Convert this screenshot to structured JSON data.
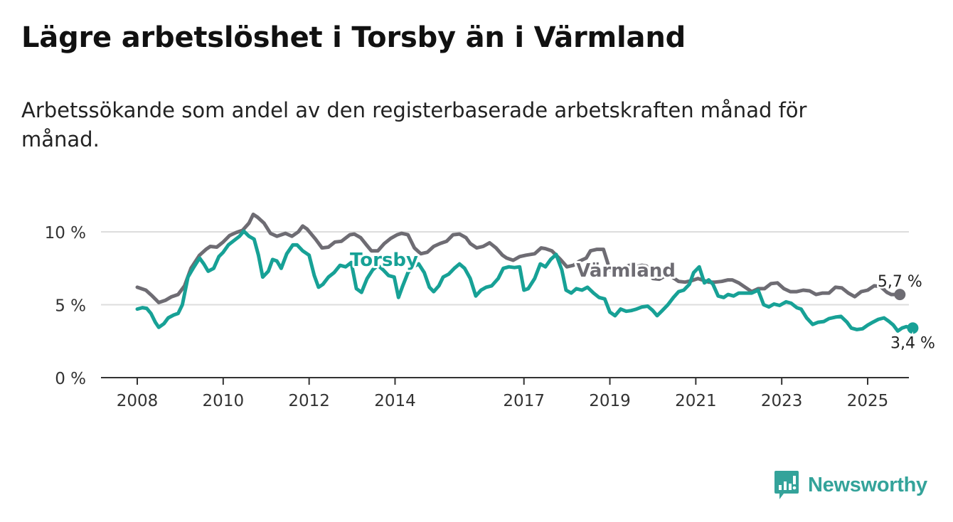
{
  "title": "Lägre arbetslöshet i Torsby än i Värmland",
  "subtitle": "Arbetssökande som andel av den registerbaserade arbetskraften månad för månad.",
  "logo_text": "Newsworthy",
  "colors": {
    "torsby": "#17a196",
    "varmland": "#6e6c73",
    "grid": "#dddddd",
    "axis": "#333333",
    "brand": "#34a39a"
  },
  "chart_data": {
    "type": "line",
    "title": "Lägre arbetslöshet i Torsby än i Värmland",
    "xlabel": "",
    "ylabel": "",
    "xlim": [
      2008,
      2026.8
    ],
    "ylim": [
      0,
      10
    ],
    "y_ticks": [
      0,
      5,
      10
    ],
    "y_tick_labels": [
      "0 %",
      "5 %",
      "10 %"
    ],
    "x_ticks": [
      2008,
      2010,
      2012,
      2014,
      2017,
      2019,
      2021,
      2023,
      2025
    ],
    "x_tick_labels": [
      "2008",
      "2010",
      "2012",
      "2014",
      "2017",
      "2019",
      "2021",
      "2023",
      "2025"
    ],
    "series": [
      {
        "name": "Värmland",
        "label": "Värmland",
        "end_label": "5,7 %",
        "points": [
          [
            2008,
            6.2
          ],
          [
            2008.2,
            6.0
          ],
          [
            2008.35,
            5.6
          ],
          [
            2008.5,
            5.15
          ],
          [
            2008.65,
            5.3
          ],
          [
            2008.8,
            5.55
          ],
          [
            2008.95,
            5.7
          ],
          [
            2009.1,
            6.3
          ],
          [
            2009.25,
            7.5
          ],
          [
            2009.45,
            8.4
          ],
          [
            2009.6,
            8.8
          ],
          [
            2009.7,
            9.0
          ],
          [
            2009.85,
            8.95
          ],
          [
            2010.0,
            9.3
          ],
          [
            2010.15,
            9.75
          ],
          [
            2010.3,
            9.95
          ],
          [
            2010.45,
            10.1
          ],
          [
            2010.6,
            10.6
          ],
          [
            2010.7,
            11.2
          ],
          [
            2010.8,
            11.0
          ],
          [
            2010.95,
            10.6
          ],
          [
            2011.1,
            9.9
          ],
          [
            2011.25,
            9.7
          ],
          [
            2011.45,
            9.9
          ],
          [
            2011.6,
            9.7
          ],
          [
            2011.75,
            10.0
          ],
          [
            2011.85,
            10.4
          ],
          [
            2011.95,
            10.2
          ],
          [
            2012.15,
            9.5
          ],
          [
            2012.3,
            8.9
          ],
          [
            2012.45,
            8.95
          ],
          [
            2012.6,
            9.3
          ],
          [
            2012.75,
            9.35
          ],
          [
            2012.95,
            9.8
          ],
          [
            2013.05,
            9.85
          ],
          [
            2013.2,
            9.6
          ],
          [
            2013.35,
            9.05
          ],
          [
            2013.45,
            8.7
          ],
          [
            2013.6,
            8.7
          ],
          [
            2013.75,
            9.2
          ],
          [
            2013.9,
            9.55
          ],
          [
            2014.05,
            9.8
          ],
          [
            2014.15,
            9.9
          ],
          [
            2014.3,
            9.8
          ],
          [
            2014.45,
            8.9
          ],
          [
            2014.6,
            8.5
          ],
          [
            2014.75,
            8.6
          ],
          [
            2014.9,
            9.0
          ],
          [
            2015.05,
            9.2
          ],
          [
            2015.2,
            9.35
          ],
          [
            2015.35,
            9.8
          ],
          [
            2015.5,
            9.85
          ],
          [
            2015.65,
            9.6
          ],
          [
            2015.75,
            9.2
          ],
          [
            2015.9,
            8.9
          ],
          [
            2016.05,
            9.0
          ],
          [
            2016.2,
            9.25
          ],
          [
            2016.35,
            8.9
          ],
          [
            2016.5,
            8.4
          ],
          [
            2016.6,
            8.2
          ],
          [
            2016.75,
            8.05
          ],
          [
            2016.9,
            8.3
          ],
          [
            2017.05,
            8.4
          ],
          [
            2017.25,
            8.5
          ],
          [
            2017.4,
            8.9
          ],
          [
            2017.5,
            8.85
          ],
          [
            2017.65,
            8.7
          ],
          [
            2017.85,
            8.1
          ],
          [
            2018.0,
            7.6
          ],
          [
            2018.15,
            7.7
          ],
          [
            2018.3,
            8.0
          ],
          [
            2018.45,
            8.2
          ],
          [
            2018.55,
            8.7
          ],
          [
            2018.7,
            8.8
          ],
          [
            2018.85,
            8.8
          ],
          [
            2019.0,
            7.4
          ],
          [
            2019.15,
            7.2
          ],
          [
            2019.3,
            7.5
          ],
          [
            2019.45,
            7.7
          ],
          [
            2019.6,
            7.6
          ],
          [
            2019.75,
            7.7
          ],
          [
            2019.85,
            7.65
          ],
          [
            2020.0,
            6.8
          ],
          [
            2020.15,
            6.75
          ],
          [
            2020.3,
            7.0
          ],
          [
            2020.45,
            6.9
          ],
          [
            2020.6,
            6.6
          ],
          [
            2020.75,
            6.55
          ],
          [
            2020.9,
            6.65
          ],
          [
            2021.05,
            6.8
          ],
          [
            2021.15,
            6.7
          ],
          [
            2021.3,
            6.55
          ],
          [
            2021.45,
            6.55
          ],
          [
            2021.6,
            6.6
          ],
          [
            2021.75,
            6.7
          ],
          [
            2021.85,
            6.7
          ],
          [
            2022.0,
            6.5
          ],
          [
            2022.15,
            6.2
          ],
          [
            2022.3,
            5.9
          ],
          [
            2022.45,
            6.1
          ],
          [
            2022.6,
            6.1
          ],
          [
            2022.75,
            6.45
          ],
          [
            2022.9,
            6.5
          ],
          [
            2023.05,
            6.1
          ],
          [
            2023.2,
            5.9
          ],
          [
            2023.35,
            5.9
          ],
          [
            2023.5,
            6.0
          ],
          [
            2023.65,
            5.95
          ],
          [
            2023.8,
            5.7
          ],
          [
            2023.95,
            5.8
          ],
          [
            2024.1,
            5.8
          ],
          [
            2024.25,
            6.2
          ],
          [
            2024.4,
            6.15
          ],
          [
            2024.55,
            5.8
          ],
          [
            2024.7,
            5.55
          ],
          [
            2024.85,
            5.9
          ],
          [
            2025.0,
            6.0
          ],
          [
            2025.15,
            6.3
          ],
          [
            2025.3,
            6.25
          ],
          [
            2025.45,
            5.85
          ],
          [
            2025.55,
            5.7
          ],
          [
            2025.7,
            5.7
          ],
          [
            2025.75,
            5.7
          ]
        ]
      },
      {
        "name": "Torsby",
        "label": "Torsby",
        "end_label": "3,4 %",
        "points": [
          [
            2008,
            4.7
          ],
          [
            2008.12,
            4.8
          ],
          [
            2008.22,
            4.75
          ],
          [
            2008.32,
            4.4
          ],
          [
            2008.42,
            3.8
          ],
          [
            2008.5,
            3.45
          ],
          [
            2008.62,
            3.7
          ],
          [
            2008.72,
            4.1
          ],
          [
            2008.85,
            4.3
          ],
          [
            2008.95,
            4.4
          ],
          [
            2009.05,
            5.0
          ],
          [
            2009.18,
            6.9
          ],
          [
            2009.3,
            7.5
          ],
          [
            2009.45,
            8.2
          ],
          [
            2009.55,
            7.8
          ],
          [
            2009.65,
            7.3
          ],
          [
            2009.78,
            7.5
          ],
          [
            2009.9,
            8.3
          ],
          [
            2010.0,
            8.6
          ],
          [
            2010.12,
            9.1
          ],
          [
            2010.25,
            9.4
          ],
          [
            2010.38,
            9.7
          ],
          [
            2010.48,
            10.05
          ],
          [
            2010.6,
            9.7
          ],
          [
            2010.72,
            9.5
          ],
          [
            2010.82,
            8.4
          ],
          [
            2010.92,
            6.9
          ],
          [
            2011.05,
            7.3
          ],
          [
            2011.15,
            8.1
          ],
          [
            2011.25,
            8.0
          ],
          [
            2011.35,
            7.5
          ],
          [
            2011.48,
            8.5
          ],
          [
            2011.62,
            9.1
          ],
          [
            2011.72,
            9.1
          ],
          [
            2011.85,
            8.7
          ],
          [
            2012.0,
            8.4
          ],
          [
            2012.12,
            7.0
          ],
          [
            2012.22,
            6.2
          ],
          [
            2012.32,
            6.4
          ],
          [
            2012.45,
            6.9
          ],
          [
            2012.58,
            7.2
          ],
          [
            2012.72,
            7.7
          ],
          [
            2012.85,
            7.6
          ],
          [
            2012.98,
            7.9
          ],
          [
            2013.1,
            6.1
          ],
          [
            2013.22,
            5.85
          ],
          [
            2013.35,
            6.8
          ],
          [
            2013.48,
            7.4
          ],
          [
            2013.6,
            7.7
          ],
          [
            2013.72,
            7.4
          ],
          [
            2013.85,
            7.0
          ],
          [
            2013.98,
            6.9
          ],
          [
            2014.08,
            5.5
          ],
          [
            2014.18,
            6.3
          ],
          [
            2014.3,
            7.2
          ],
          [
            2014.42,
            7.6
          ],
          [
            2014.55,
            7.8
          ],
          [
            2014.68,
            7.2
          ],
          [
            2014.8,
            6.2
          ],
          [
            2014.9,
            5.9
          ],
          [
            2015.02,
            6.3
          ],
          [
            2015.12,
            6.9
          ],
          [
            2015.25,
            7.1
          ],
          [
            2015.38,
            7.5
          ],
          [
            2015.5,
            7.8
          ],
          [
            2015.62,
            7.5
          ],
          [
            2015.75,
            6.8
          ],
          [
            2015.88,
            5.6
          ],
          [
            2016.0,
            6.0
          ],
          [
            2016.12,
            6.2
          ],
          [
            2016.25,
            6.3
          ],
          [
            2016.4,
            6.8
          ],
          [
            2016.52,
            7.5
          ],
          [
            2016.65,
            7.6
          ],
          [
            2016.78,
            7.55
          ],
          [
            2016.9,
            7.6
          ],
          [
            2017.0,
            6.0
          ],
          [
            2017.1,
            6.1
          ],
          [
            2017.25,
            6.8
          ],
          [
            2017.38,
            7.8
          ],
          [
            2017.5,
            7.6
          ],
          [
            2017.62,
            8.1
          ],
          [
            2017.75,
            8.45
          ],
          [
            2017.88,
            7.4
          ],
          [
            2017.98,
            6.0
          ],
          [
            2018.1,
            5.8
          ],
          [
            2018.22,
            6.1
          ],
          [
            2018.35,
            6.0
          ],
          [
            2018.48,
            6.2
          ],
          [
            2018.62,
            5.8
          ],
          [
            2018.75,
            5.5
          ],
          [
            2018.88,
            5.4
          ],
          [
            2019.0,
            4.5
          ],
          [
            2019.12,
            4.25
          ],
          [
            2019.25,
            4.7
          ],
          [
            2019.38,
            4.55
          ],
          [
            2019.5,
            4.6
          ],
          [
            2019.62,
            4.7
          ],
          [
            2019.75,
            4.85
          ],
          [
            2019.88,
            4.9
          ],
          [
            2020.0,
            4.6
          ],
          [
            2020.1,
            4.25
          ],
          [
            2020.22,
            4.6
          ],
          [
            2020.35,
            5.0
          ],
          [
            2020.48,
            5.5
          ],
          [
            2020.6,
            5.9
          ],
          [
            2020.72,
            6.0
          ],
          [
            2020.85,
            6.4
          ],
          [
            2020.95,
            7.2
          ],
          [
            2021.08,
            7.6
          ],
          [
            2021.2,
            6.5
          ],
          [
            2021.3,
            6.7
          ],
          [
            2021.4,
            6.4
          ],
          [
            2021.52,
            5.6
          ],
          [
            2021.65,
            5.5
          ],
          [
            2021.75,
            5.7
          ],
          [
            2021.88,
            5.6
          ],
          [
            2022.0,
            5.8
          ],
          [
            2022.15,
            5.8
          ],
          [
            2022.3,
            5.8
          ],
          [
            2022.45,
            6.0
          ],
          [
            2022.58,
            5.0
          ],
          [
            2022.7,
            4.85
          ],
          [
            2022.82,
            5.05
          ],
          [
            2022.95,
            4.95
          ],
          [
            2023.1,
            5.2
          ],
          [
            2023.22,
            5.1
          ],
          [
            2023.35,
            4.8
          ],
          [
            2023.45,
            4.7
          ],
          [
            2023.58,
            4.1
          ],
          [
            2023.72,
            3.65
          ],
          [
            2023.85,
            3.8
          ],
          [
            2023.98,
            3.85
          ],
          [
            2024.1,
            4.05
          ],
          [
            2024.25,
            4.15
          ],
          [
            2024.38,
            4.2
          ],
          [
            2024.52,
            3.8
          ],
          [
            2024.62,
            3.4
          ],
          [
            2024.75,
            3.3
          ],
          [
            2024.88,
            3.35
          ],
          [
            2025.0,
            3.6
          ],
          [
            2025.12,
            3.8
          ],
          [
            2025.25,
            4.0
          ],
          [
            2025.38,
            4.1
          ],
          [
            2025.5,
            3.85
          ],
          [
            2025.6,
            3.6
          ],
          [
            2025.7,
            3.2
          ],
          [
            2025.8,
            3.4
          ],
          [
            2025.9,
            3.5
          ],
          [
            2026.0,
            3.4
          ],
          [
            2026.05,
            3.4
          ]
        ]
      }
    ]
  }
}
